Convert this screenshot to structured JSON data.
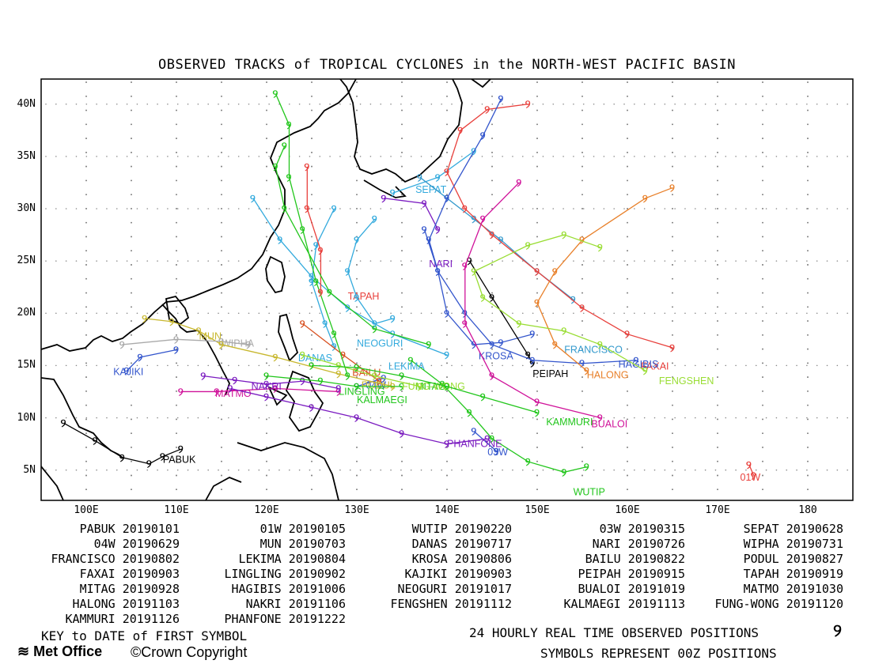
{
  "title": "OBSERVED TRACKS of TROPICAL CYCLONES in the NORTH-WEST PACIFIC BASIN",
  "lat_labels": [
    "40N",
    "35N",
    "30N",
    "25N",
    "20N",
    "15N",
    "10N",
    "5N"
  ],
  "lon_labels": [
    "100E",
    "110E",
    "120E",
    "130E",
    "140E",
    "150E",
    "160E",
    "170E",
    "180"
  ],
  "key_header": "KEY to DATE of FIRST SYMBOL",
  "key": [
    {
      "name": "PABUK",
      "date": "20190101"
    },
    {
      "name": "01W",
      "date": "20190105"
    },
    {
      "name": "WUTIP",
      "date": "20190220"
    },
    {
      "name": "03W",
      "date": "20190315"
    },
    {
      "name": "SEPAT",
      "date": "20190628"
    },
    {
      "name": "04W",
      "date": "20190629"
    },
    {
      "name": "MUN",
      "date": "20190703"
    },
    {
      "name": "DANAS",
      "date": "20190717"
    },
    {
      "name": "NARI",
      "date": "20190726"
    },
    {
      "name": "WIPHA",
      "date": "20190731"
    },
    {
      "name": "FRANCISCO",
      "date": "20190802"
    },
    {
      "name": "LEKIMA",
      "date": "20190804"
    },
    {
      "name": "KROSA",
      "date": "20190806"
    },
    {
      "name": "BAILU",
      "date": "20190822"
    },
    {
      "name": "PODUL",
      "date": "20190827"
    },
    {
      "name": "FAXAI",
      "date": "20190903"
    },
    {
      "name": "LINGLING",
      "date": "20190902"
    },
    {
      "name": "KAJIKI",
      "date": "20190903"
    },
    {
      "name": "PEIPAH",
      "date": "20190915"
    },
    {
      "name": "TAPAH",
      "date": "20190919"
    },
    {
      "name": "MITAG",
      "date": "20190928"
    },
    {
      "name": "HAGIBIS",
      "date": "20191006"
    },
    {
      "name": "NEOGURI",
      "date": "20191017"
    },
    {
      "name": "BUALOI",
      "date": "20191019"
    },
    {
      "name": "MATMO",
      "date": "20191030"
    },
    {
      "name": "HALONG",
      "date": "20191103"
    },
    {
      "name": "NAKRI",
      "date": "20191106"
    },
    {
      "name": "FENGSHEN",
      "date": "20191112"
    },
    {
      "name": "KALMAEGI",
      "date": "20191113"
    },
    {
      "name": "FUNG-WONG",
      "date": "20191120"
    },
    {
      "name": "KAMMURI",
      "date": "20191126"
    },
    {
      "name": "PHANFONE",
      "date": "20191222"
    }
  ],
  "footer_line1": "24 HOURLY REAL TIME OBSERVED POSITIONS",
  "footer_line2": "SYMBOLS REPRESENT 00Z POSITIONS",
  "footer_symbol": "୨",
  "logo": "Met Office",
  "copyright": "©Crown Copyright",
  "tracks": [
    {
      "label": "PABUK",
      "color": "#000000",
      "pts": [
        [
          97.5,
          9.5
        ],
        [
          101,
          7.8
        ],
        [
          104,
          6.2
        ],
        [
          107,
          5.6
        ],
        [
          108.5,
          6.3
        ],
        [
          110.5,
          7
        ]
      ],
      "lab": [
        108.5,
        5.7
      ]
    },
    {
      "label": "01W",
      "color": "#e8403c",
      "pts": [
        [
          173.5,
          5.5
        ],
        [
          174,
          4.5
        ]
      ],
      "lab": [
        172.5,
        4
      ]
    },
    {
      "label": "WUTIP",
      "color": "#22c61c",
      "pts": [
        [
          136,
          15.5
        ],
        [
          139.5,
          13.2
        ],
        [
          142.5,
          10.5
        ],
        [
          145,
          8
        ],
        [
          149,
          5.8
        ],
        [
          153,
          4.8
        ],
        [
          155.5,
          5.3
        ]
      ],
      "lab": [
        154,
        2.6
      ]
    },
    {
      "label": "03W",
      "color": "#3355cc",
      "pts": [
        [
          143,
          8.7
        ],
        [
          145.5,
          6.8
        ]
      ],
      "lab": [
        144.5,
        6.4
      ]
    },
    {
      "label": "SEPAT",
      "color": "#33aadd",
      "pts": [
        [
          134,
          31.5
        ],
        [
          139,
          33
        ],
        [
          143,
          35.5
        ]
      ],
      "lab": [
        136.5,
        31.5
      ]
    },
    {
      "label": "04W",
      "color": "#3355cc",
      "pts": [
        [
          130,
          13
        ],
        [
          133,
          13.8
        ]
      ],
      "lab": [
        131,
        12.8
      ]
    },
    {
      "label": "MUN",
      "color": "#c8b830",
      "pts": [
        [
          106.5,
          19.5
        ],
        [
          109.5,
          19.2
        ],
        [
          112.5,
          18.3
        ],
        [
          115,
          17
        ]
      ],
      "lab": [
        112.5,
        17.5
      ]
    },
    {
      "label": "DANAS",
      "color": "#33aadd",
      "pts": [
        [
          127.5,
          16.8
        ],
        [
          126.5,
          19
        ],
        [
          125,
          23
        ],
        [
          125.5,
          26.5
        ],
        [
          127.5,
          30
        ]
      ],
      "lab": [
        123.5,
        15.4
      ]
    },
    {
      "label": "NARI",
      "color": "#7a1ac0",
      "pts": [
        [
          133,
          31
        ],
        [
          137.5,
          30.5
        ],
        [
          139,
          28
        ]
      ],
      "lab": [
        138,
        24.4
      ]
    },
    {
      "label": "WIPHA",
      "color": "#aaaaaa",
      "pts": [
        [
          104,
          17
        ],
        [
          110,
          17.5
        ],
        [
          115,
          17.3
        ],
        [
          118,
          17
        ]
      ],
      "lab": [
        115,
        16.8
      ]
    },
    {
      "label": "FRANCISCO",
      "color": "#3399cc",
      "pts": [
        [
          154,
          21.3
        ],
        [
          150,
          24
        ],
        [
          146,
          27
        ],
        [
          143,
          29
        ],
        [
          140,
          31
        ],
        [
          137,
          33
        ]
      ],
      "lab": [
        153,
        16.2
      ]
    },
    {
      "label": "LEKIMA",
      "color": "#33aadd",
      "pts": [
        [
          140,
          16
        ],
        [
          134,
          18
        ],
        [
          129,
          20.5
        ],
        [
          125,
          23.5
        ],
        [
          121.5,
          27
        ],
        [
          118.5,
          31
        ]
      ],
      "lab": [
        133.5,
        14.6
      ]
    },
    {
      "label": "KROSA",
      "color": "#3355cc",
      "pts": [
        [
          149.5,
          18
        ],
        [
          146,
          17.2
        ],
        [
          143,
          17
        ],
        [
          140,
          20
        ],
        [
          139,
          24
        ],
        [
          137.5,
          28
        ]
      ],
      "lab": [
        143.5,
        15.6
      ]
    },
    {
      "label": "BAILU",
      "color": "#d85020",
      "pts": [
        [
          132.5,
          13.5
        ],
        [
          128.5,
          16
        ],
        [
          124,
          19
        ]
      ],
      "lab": [
        129.5,
        14
      ]
    },
    {
      "label": "PODUL",
      "color": "#c8b830",
      "pts": [
        [
          134,
          13
        ],
        [
          128,
          14.2
        ],
        [
          121,
          15.8
        ],
        [
          115,
          17
        ]
      ],
      "lab": [
        130.5,
        12.8
      ]
    },
    {
      "label": "FAXAI",
      "color": "#e8403c",
      "pts": [
        [
          165,
          16.7
        ],
        [
          160,
          18
        ],
        [
          155,
          20.5
        ],
        [
          150,
          24
        ],
        [
          145,
          27.5
        ],
        [
          142,
          30
        ],
        [
          140,
          33.5
        ],
        [
          141.5,
          37.5
        ],
        [
          144.5,
          39.5
        ],
        [
          149,
          40
        ]
      ],
      "lab": [
        161.5,
        14.6
      ]
    },
    {
      "label": "LINGLING",
      "color": "#22c61c",
      "pts": [
        [
          129,
          14
        ],
        [
          127.5,
          18
        ],
        [
          125.5,
          23
        ],
        [
          124,
          28
        ],
        [
          122.5,
          33
        ],
        [
          122.5,
          38
        ],
        [
          121,
          41
        ]
      ],
      "lab": [
        128,
        12.2
      ]
    },
    {
      "label": "KAJIKI",
      "color": "#3355cc",
      "pts": [
        [
          104.5,
          14.5
        ],
        [
          106,
          15.8
        ],
        [
          110,
          16.5
        ]
      ],
      "lab": [
        103,
        14.1
      ]
    },
    {
      "label": "PEIPAH",
      "color": "#000000",
      "pts": [
        [
          142.5,
          25
        ],
        [
          145,
          21.5
        ],
        [
          149,
          16
        ],
        [
          149.5,
          15.2
        ]
      ],
      "lab": [
        149.5,
        13.9
      ]
    },
    {
      "label": "TAPAH",
      "color": "#e8403c",
      "pts": [
        [
          126,
          22
        ],
        [
          126,
          26
        ],
        [
          124.5,
          30
        ],
        [
          124.5,
          34
        ]
      ],
      "lab": [
        129,
        21.3
      ]
    },
    {
      "label": "MITAG",
      "color": "#22c61c",
      "pts": [
        [
          138,
          17
        ],
        [
          132,
          18.5
        ],
        [
          127,
          22
        ],
        [
          122,
          30
        ],
        [
          121,
          34
        ],
        [
          122,
          36
        ]
      ],
      "lab": [
        136.5,
        12.7
      ]
    },
    {
      "label": "HAGIBIS",
      "color": "#3355cc",
      "pts": [
        [
          161,
          15.5
        ],
        [
          155,
          15.2
        ],
        [
          149.5,
          15.5
        ],
        [
          145,
          17
        ],
        [
          142,
          20
        ],
        [
          139,
          24
        ],
        [
          138,
          27
        ],
        [
          140,
          31
        ],
        [
          144,
          37
        ],
        [
          146,
          40.5
        ]
      ],
      "lab": [
        159,
        14.8
      ]
    },
    {
      "label": "NEOGURI",
      "color": "#33aadd",
      "pts": [
        [
          134,
          19.5
        ],
        [
          132,
          19
        ],
        [
          130,
          21.5
        ],
        [
          129,
          24
        ],
        [
          130,
          27
        ],
        [
          132,
          29
        ]
      ],
      "lab": [
        130,
        16.8
      ]
    },
    {
      "label": "BUALOI",
      "color": "#d0139a",
      "pts": [
        [
          157,
          10
        ],
        [
          150,
          11.5
        ],
        [
          145,
          14
        ],
        [
          142,
          19
        ],
        [
          142,
          24.5
        ],
        [
          144,
          29
        ],
        [
          148,
          32.5
        ]
      ],
      "lab": [
        156,
        9.1
      ]
    },
    {
      "label": "MATMO",
      "color": "#d0139a",
      "pts": [
        [
          128,
          12.5
        ],
        [
          121,
          12.8
        ],
        [
          114.5,
          12.5
        ],
        [
          110.5,
          12.5
        ]
      ],
      "lab": [
        114.3,
        12
      ]
    },
    {
      "label": "HALONG",
      "color": "#e8802a",
      "pts": [
        [
          155.5,
          14.5
        ],
        [
          152,
          17
        ],
        [
          150,
          21
        ],
        [
          152,
          24
        ],
        [
          155,
          27
        ],
        [
          162,
          31
        ],
        [
          165,
          32
        ]
      ],
      "lab": [
        155.5,
        13.8
      ]
    },
    {
      "label": "NAKRI",
      "color": "#7a1ac0",
      "pts": [
        [
          128,
          12.8
        ],
        [
          124,
          13.5
        ],
        [
          120,
          13.2
        ],
        [
          116.5,
          13.6
        ],
        [
          113,
          14
        ]
      ],
      "lab": [
        118.3,
        12.7
      ]
    },
    {
      "label": "FENGSHEN",
      "color": "#99dd33",
      "pts": [
        [
          162,
          14.5
        ],
        [
          157,
          17
        ],
        [
          153,
          18.3
        ],
        [
          148,
          19
        ],
        [
          144,
          21.5
        ],
        [
          143,
          24
        ],
        [
          149,
          26.5
        ],
        [
          153,
          27.5
        ],
        [
          157,
          26.3
        ]
      ],
      "lab": [
        163.5,
        13.2
      ]
    },
    {
      "label": "KALMAEGI",
      "color": "#22c61c",
      "pts": [
        [
          135,
          13
        ],
        [
          130,
          13
        ],
        [
          126,
          13.5
        ],
        [
          120,
          14
        ]
      ],
      "lab": [
        130,
        11.4
      ]
    },
    {
      "label": "FUNG-WONG",
      "color": "#99dd33",
      "pts": [
        [
          137,
          13
        ],
        [
          132,
          14
        ],
        [
          128,
          15
        ],
        [
          124,
          16
        ]
      ],
      "lab": [
        135,
        12.7
      ]
    },
    {
      "label": "KAMMURI",
      "color": "#22c61c",
      "pts": [
        [
          150,
          10.5
        ],
        [
          144,
          12
        ],
        [
          140,
          13
        ],
        [
          135,
          14
        ],
        [
          130,
          14.8
        ],
        [
          125,
          15
        ]
      ],
      "lab": [
        151,
        9.3
      ]
    },
    {
      "label": "PHANFONE",
      "color": "#7a1ac0",
      "pts": [
        [
          144.5,
          8
        ],
        [
          140,
          7.5
        ],
        [
          135,
          8.5
        ],
        [
          130,
          10
        ],
        [
          125,
          11
        ],
        [
          120,
          12
        ],
        [
          116,
          12.8
        ]
      ],
      "lab": [
        140,
        7.2
      ]
    }
  ]
}
